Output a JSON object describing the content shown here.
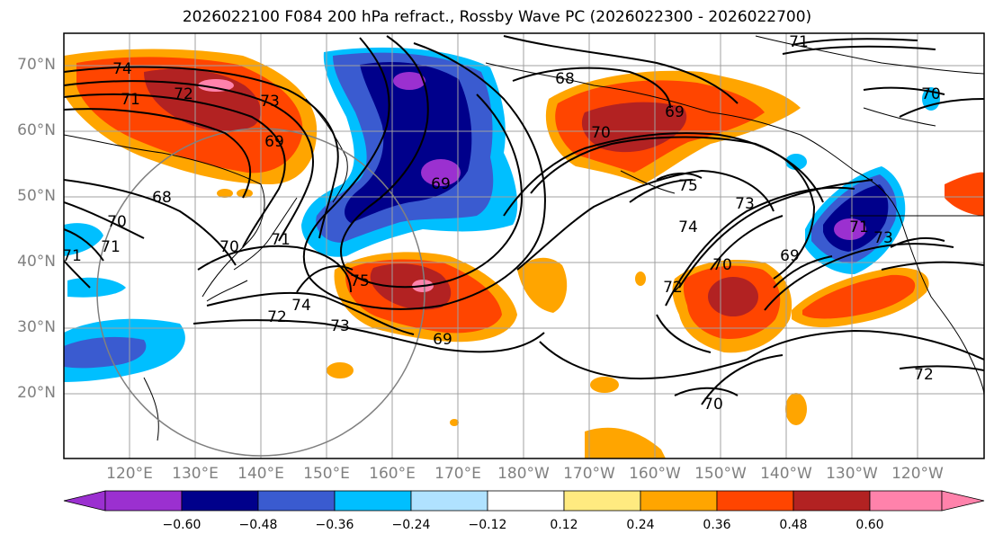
{
  "title": "2026022100 F084 200 hPa refract., Rossby Wave PC (2026022300 - 2026022700)",
  "latitude_labels": [
    "70°N",
    "60°N",
    "50°N",
    "40°N",
    "30°N",
    "20°N"
  ],
  "longitude_labels": [
    "120°E",
    "130°E",
    "140°E",
    "150°E",
    "160°E",
    "170°E",
    "180°W",
    "170°W",
    "160°W",
    "150°W",
    "140°W",
    "130°W",
    "120°W"
  ],
  "colorbar": {
    "tick_labels": [
      "−0.60",
      "−0.48",
      "−0.36",
      "−0.24",
      "−0.12",
      "0.12",
      "0.24",
      "0.36",
      "0.48",
      "0.60"
    ],
    "colors": [
      "#9b30d0",
      "#00008b",
      "#3a5bd0",
      "#00bfff",
      "#b0e2ff",
      "#ffffff",
      "#ffea80",
      "#ffa500",
      "#ff4500",
      "#b22222",
      "#ff82ab"
    ]
  },
  "contour_labels": [
    "71",
    "74",
    "72",
    "73",
    "71",
    "69",
    "68",
    "70",
    "71",
    "70",
    "72",
    "74",
    "73",
    "71",
    "75",
    "69",
    "68",
    "69",
    "70",
    "75",
    "74",
    "73",
    "72",
    "70",
    "69",
    "71",
    "73",
    "70",
    "71",
    "69",
    "72",
    "70"
  ]
}
